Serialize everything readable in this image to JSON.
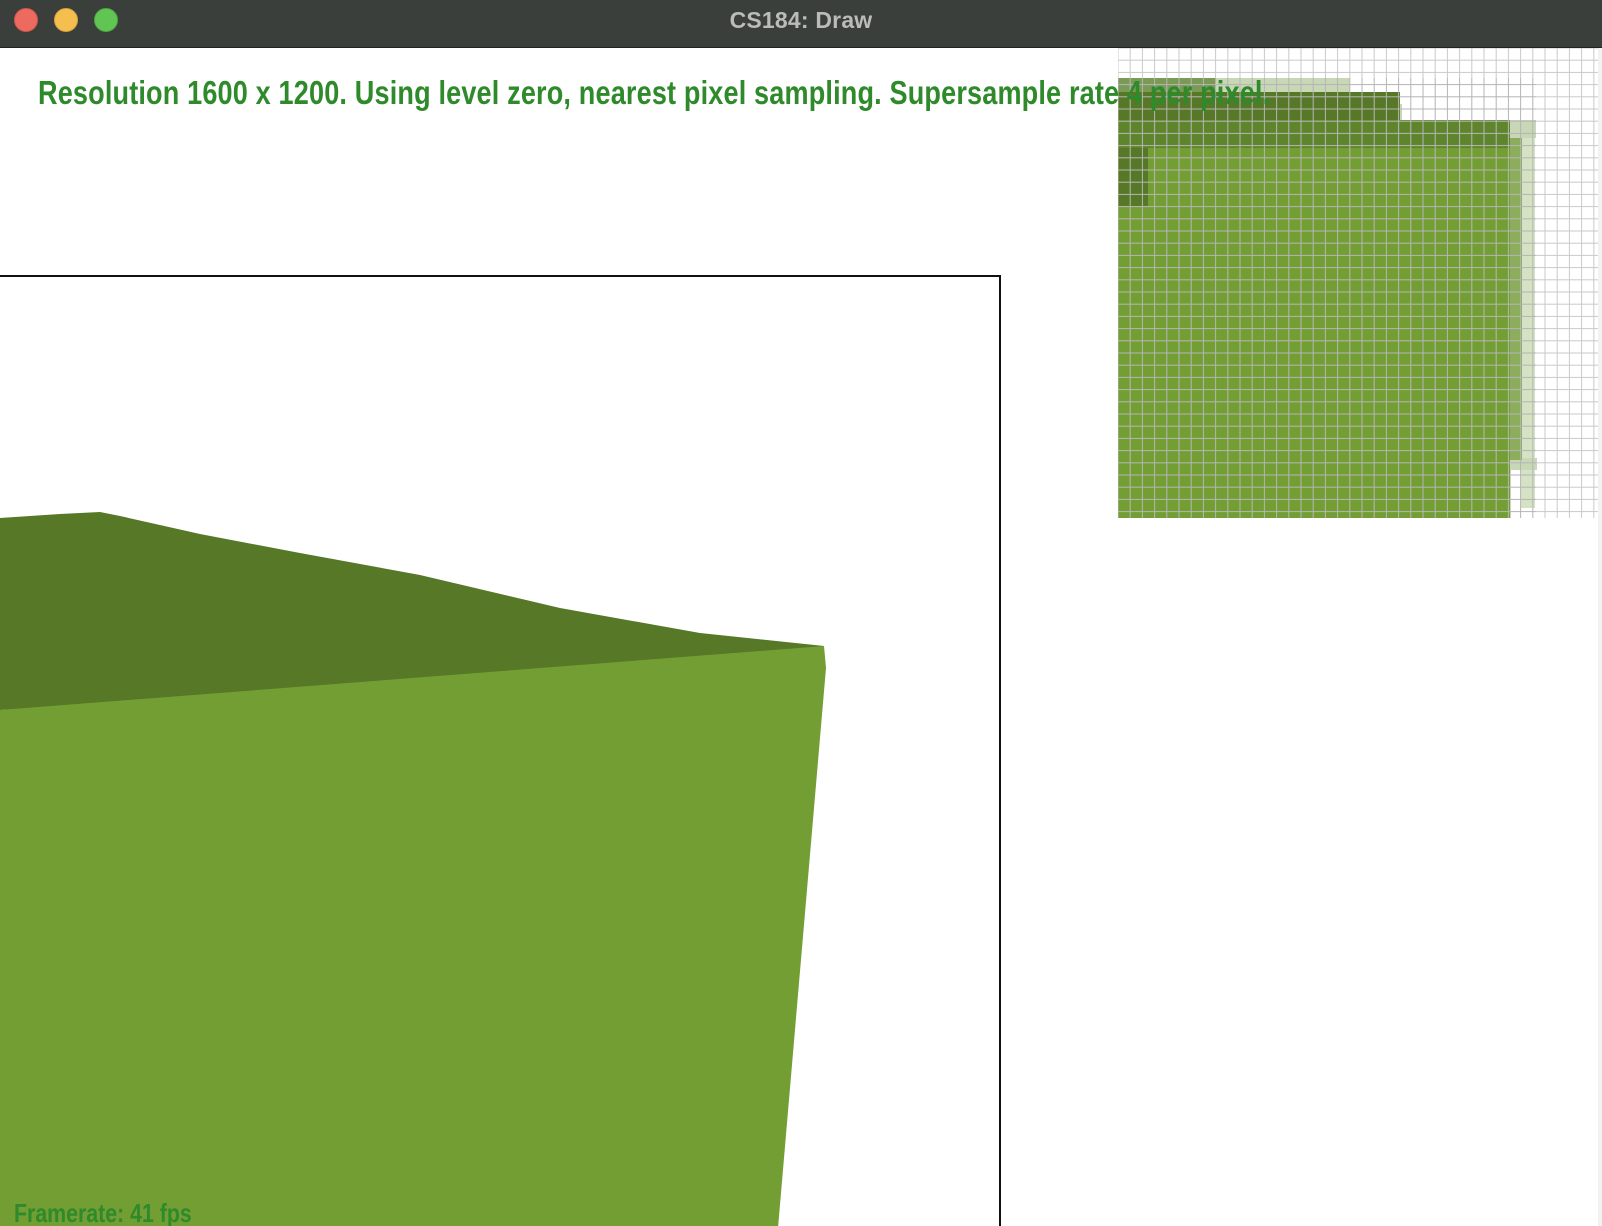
{
  "window": {
    "title": "CS184: Draw"
  },
  "overlay": {
    "status": "Resolution 1600 x 1200. Using level zero, nearest pixel sampling. Supersample rate 4 per pixel.",
    "framerate": "Framerate: 41 fps"
  },
  "colors": {
    "text_green": "#2e8a2a",
    "top_face": "#567827",
    "front_face": "#739e33",
    "titlebar": "#3b3f3c"
  },
  "icons": {
    "close": "traffic-light-close",
    "minimize": "traffic-light-minimize",
    "zoom": "traffic-light-zoom"
  }
}
